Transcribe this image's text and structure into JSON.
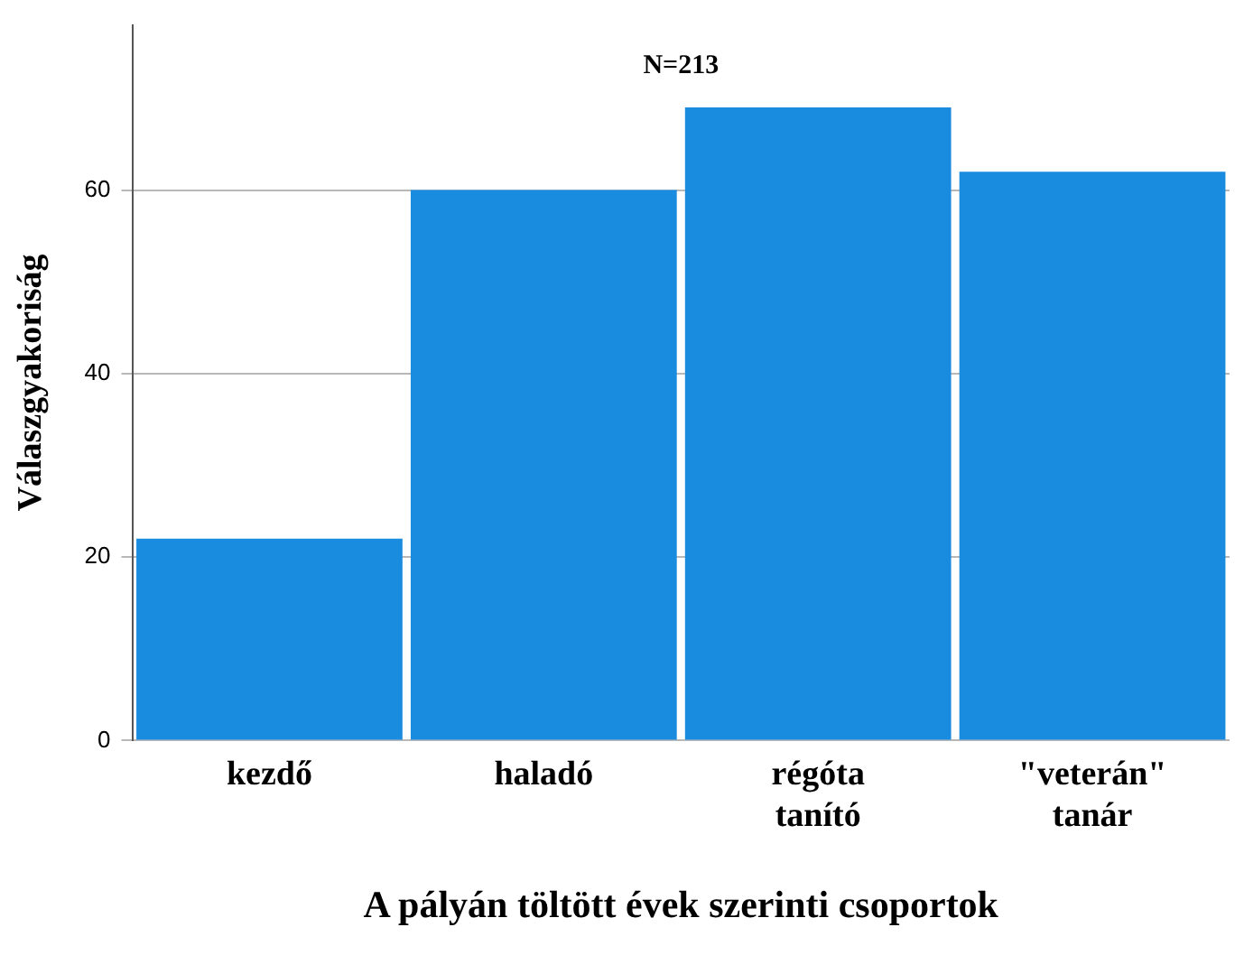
{
  "chart_data": {
    "type": "bar",
    "title": "N=213",
    "xlabel": "A pályán töltött évek szerinti csoportok",
    "ylabel": "Válaszgyakoriság",
    "categories": [
      "kezdő",
      "haladó",
      "régóta tanító",
      "\"veterán\" tanár"
    ],
    "values": [
      22,
      60,
      69,
      62
    ],
    "color": "#1a8ce0",
    "ylim": [
      0,
      78
    ],
    "yticks": [
      0,
      20,
      40,
      60
    ],
    "grid": "y"
  }
}
